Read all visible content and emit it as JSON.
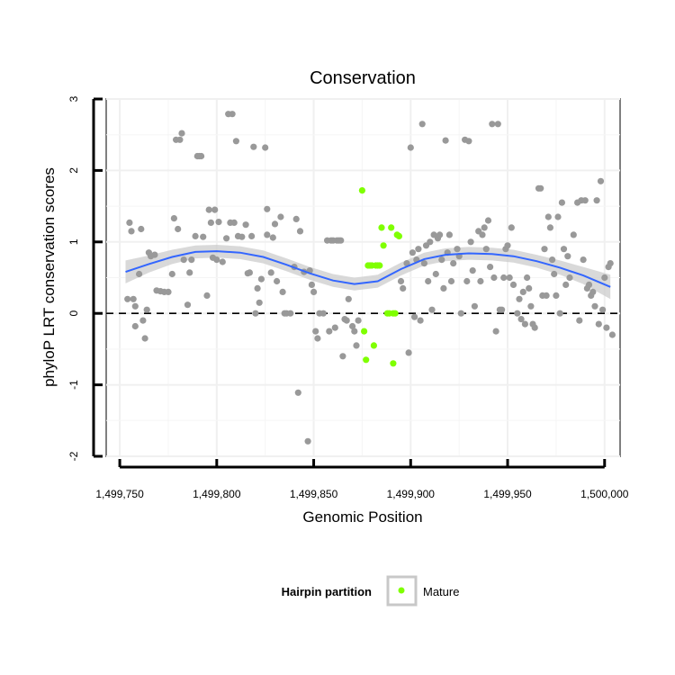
{
  "chart_data": {
    "type": "scatter",
    "title": "Conservation",
    "xlabel": "Genomic Position",
    "ylabel": "phyloP LRT conservation scores",
    "xlim": [
      1499743,
      1500008
    ],
    "ylim": [
      -2,
      3
    ],
    "x_ticks": [
      1499750,
      1499800,
      1499850,
      1499900,
      1499950,
      1500000
    ],
    "x_tick_labels": [
      "1,499,750",
      "1,499,800",
      "1,499,850",
      "1,499,900",
      "1,499,950",
      "1,500,000"
    ],
    "y_ticks": [
      -2,
      -1,
      0,
      1,
      2,
      3
    ],
    "y_tick_labels": [
      "-2",
      "-1",
      "0",
      "1",
      "2",
      "3"
    ],
    "grid": true,
    "reference_line": {
      "y": 0,
      "style": "dashed"
    },
    "colors": {
      "other": "#999999",
      "mature": "#7fff00",
      "smooth": "#3366ff",
      "band": "#cccccc"
    },
    "legend": {
      "title": "Hairpin partition",
      "entries": [
        "Mature"
      ],
      "position": "bottom"
    },
    "series": [
      {
        "group": "other",
        "points": [
          [
            1499754,
            0.2
          ],
          [
            1499755,
            1.27
          ],
          [
            1499756,
            1.15
          ],
          [
            1499757,
            0.2
          ],
          [
            1499758,
            0.1
          ],
          [
            1499758,
            -0.18
          ],
          [
            1499760,
            0.55
          ],
          [
            1499761,
            1.18
          ],
          [
            1499762,
            -0.1
          ],
          [
            1499763,
            -0.35
          ],
          [
            1499764,
            0.05
          ],
          [
            1499765,
            0.85
          ],
          [
            1499766,
            0.8
          ],
          [
            1499768,
            0.82
          ],
          [
            1499769,
            0.32
          ],
          [
            1499771,
            0.31
          ],
          [
            1499773,
            0.3
          ],
          [
            1499775,
            0.3
          ],
          [
            1499777,
            0.55
          ],
          [
            1499778,
            1.33
          ],
          [
            1499779,
            2.43
          ],
          [
            1499780,
            1.18
          ],
          [
            1499781,
            2.43
          ],
          [
            1499782,
            2.52
          ],
          [
            1499783,
            0.75
          ],
          [
            1499785,
            0.12
          ],
          [
            1499786,
            0.57
          ],
          [
            1499787,
            0.75
          ],
          [
            1499789,
            1.08
          ],
          [
            1499790,
            2.2
          ],
          [
            1499791,
            2.2
          ],
          [
            1499792,
            2.2
          ],
          [
            1499793,
            1.07
          ],
          [
            1499795,
            0.25
          ],
          [
            1499796,
            1.45
          ],
          [
            1499797,
            1.27
          ],
          [
            1499798,
            0.78
          ],
          [
            1499799,
            1.45
          ],
          [
            1499800,
            0.75
          ],
          [
            1499801,
            1.28
          ],
          [
            1499803,
            0.72
          ],
          [
            1499805,
            1.05
          ],
          [
            1499806,
            2.79
          ],
          [
            1499807,
            1.27
          ],
          [
            1499808,
            2.79
          ],
          [
            1499809,
            1.27
          ],
          [
            1499810,
            2.41
          ],
          [
            1499811,
            1.08
          ],
          [
            1499813,
            1.07
          ],
          [
            1499815,
            1.24
          ],
          [
            1499816,
            0.56
          ],
          [
            1499817,
            0.57
          ],
          [
            1499818,
            1.08
          ],
          [
            1499819,
            2.33
          ],
          [
            1499820,
            0.0
          ],
          [
            1499821,
            0.35
          ],
          [
            1499822,
            0.15
          ],
          [
            1499823,
            0.48
          ],
          [
            1499825,
            2.32
          ],
          [
            1499826,
            1.46
          ],
          [
            1499826,
            1.1
          ],
          [
            1499828,
            0.57
          ],
          [
            1499829,
            1.06
          ],
          [
            1499830,
            1.25
          ],
          [
            1499831,
            0.45
          ],
          [
            1499833,
            1.35
          ],
          [
            1499834,
            0.3
          ],
          [
            1499835,
            0.0
          ],
          [
            1499836,
            0.0
          ],
          [
            1499838,
            0.0
          ],
          [
            1499840,
            0.65
          ],
          [
            1499841,
            1.32
          ],
          [
            1499842,
            -1.11
          ],
          [
            1499843,
            1.15
          ],
          [
            1499845,
            0.58
          ],
          [
            1499847,
            -1.79
          ],
          [
            1499848,
            0.6
          ],
          [
            1499849,
            0.4
          ],
          [
            1499850,
            0.3
          ],
          [
            1499851,
            -0.25
          ],
          [
            1499852,
            -0.35
          ],
          [
            1499853,
            0.0
          ],
          [
            1499855,
            0.0
          ],
          [
            1499857,
            1.02
          ],
          [
            1499858,
            -0.25
          ],
          [
            1499859,
            1.02
          ],
          [
            1499860,
            1.02
          ],
          [
            1499861,
            -0.2
          ],
          [
            1499862,
            1.02
          ],
          [
            1499863,
            1.02
          ],
          [
            1499864,
            1.02
          ],
          [
            1499865,
            -0.6
          ],
          [
            1499866,
            -0.08
          ],
          [
            1499867,
            -0.1
          ],
          [
            1499868,
            0.2
          ],
          [
            1499870,
            -0.18
          ],
          [
            1499871,
            -0.25
          ],
          [
            1499872,
            -0.45
          ],
          [
            1499873,
            -0.1
          ],
          [
            1499895,
            0.45
          ],
          [
            1499896,
            0.35
          ],
          [
            1499898,
            0.7
          ],
          [
            1499899,
            -0.55
          ],
          [
            1499900,
            2.32
          ],
          [
            1499901,
            0.85
          ],
          [
            1499902,
            -0.05
          ],
          [
            1499903,
            0.75
          ],
          [
            1499904,
            0.9
          ],
          [
            1499905,
            -0.1
          ],
          [
            1499906,
            2.65
          ],
          [
            1499907,
            0.7
          ],
          [
            1499908,
            0.95
          ],
          [
            1499909,
            0.45
          ],
          [
            1499910,
            1.0
          ],
          [
            1499911,
            0.05
          ],
          [
            1499912,
            1.1
          ],
          [
            1499913,
            0.55
          ],
          [
            1499914,
            1.05
          ],
          [
            1499915,
            1.1
          ],
          [
            1499916,
            0.75
          ],
          [
            1499917,
            0.35
          ],
          [
            1499918,
            2.42
          ],
          [
            1499919,
            0.85
          ],
          [
            1499920,
            1.1
          ],
          [
            1499921,
            0.45
          ],
          [
            1499922,
            0.7
          ],
          [
            1499924,
            0.9
          ],
          [
            1499925,
            0.8
          ],
          [
            1499926,
            0.0
          ],
          [
            1499928,
            2.43
          ],
          [
            1499929,
            0.45
          ],
          [
            1499930,
            2.41
          ],
          [
            1499931,
            1.0
          ],
          [
            1499932,
            0.6
          ],
          [
            1499933,
            0.1
          ],
          [
            1499935,
            1.15
          ],
          [
            1499936,
            0.45
          ],
          [
            1499937,
            1.1
          ],
          [
            1499938,
            1.2
          ],
          [
            1499939,
            0.9
          ],
          [
            1499940,
            1.3
          ],
          [
            1499941,
            0.65
          ],
          [
            1499942,
            2.65
          ],
          [
            1499943,
            0.5
          ],
          [
            1499944,
            -0.25
          ],
          [
            1499945,
            2.65
          ],
          [
            1499946,
            0.05
          ],
          [
            1499947,
            0.05
          ],
          [
            1499948,
            0.5
          ],
          [
            1499949,
            0.9
          ],
          [
            1499950,
            0.95
          ],
          [
            1499951,
            0.5
          ],
          [
            1499952,
            1.2
          ],
          [
            1499953,
            0.4
          ],
          [
            1499955,
            0.0
          ],
          [
            1499956,
            0.2
          ],
          [
            1499957,
            -0.08
          ],
          [
            1499958,
            0.3
          ],
          [
            1499959,
            -0.15
          ],
          [
            1499960,
            0.5
          ],
          [
            1499961,
            0.35
          ],
          [
            1499962,
            0.1
          ],
          [
            1499963,
            -0.15
          ],
          [
            1499964,
            -0.2
          ],
          [
            1499966,
            1.75
          ],
          [
            1499967,
            1.75
          ],
          [
            1499968,
            0.25
          ],
          [
            1499969,
            0.9
          ],
          [
            1499970,
            0.25
          ],
          [
            1499971,
            1.35
          ],
          [
            1499972,
            1.2
          ],
          [
            1499973,
            0.75
          ],
          [
            1499974,
            0.55
          ],
          [
            1499975,
            0.25
          ],
          [
            1499976,
            1.35
          ],
          [
            1499977,
            0.0
          ],
          [
            1499978,
            1.55
          ],
          [
            1499979,
            0.9
          ],
          [
            1499980,
            0.4
          ],
          [
            1499981,
            0.8
          ],
          [
            1499982,
            0.5
          ],
          [
            1499984,
            1.1
          ],
          [
            1499986,
            1.55
          ],
          [
            1499987,
            -0.1
          ],
          [
            1499988,
            1.58
          ],
          [
            1499989,
            0.75
          ],
          [
            1499990,
            1.58
          ],
          [
            1499991,
            0.35
          ],
          [
            1499992,
            0.4
          ],
          [
            1499993,
            0.25
          ],
          [
            1499994,
            0.3
          ],
          [
            1499995,
            0.1
          ],
          [
            1499996,
            1.58
          ],
          [
            1499997,
            -0.15
          ],
          [
            1499998,
            1.85
          ],
          [
            1499999,
            0.05
          ],
          [
            1500000,
            0.5
          ],
          [
            1500001,
            -0.2
          ],
          [
            1500002,
            0.65
          ],
          [
            1500003,
            0.7
          ],
          [
            1500004,
            -0.3
          ]
        ]
      },
      {
        "group": "Mature",
        "points": [
          [
            1499875,
            1.72
          ],
          [
            1499876,
            -0.25
          ],
          [
            1499877,
            -0.65
          ],
          [
            1499878,
            0.67
          ],
          [
            1499879,
            0.67
          ],
          [
            1499880,
            0.67
          ],
          [
            1499881,
            -0.45
          ],
          [
            1499882,
            0.67
          ],
          [
            1499883,
            0.67
          ],
          [
            1499884,
            0.67
          ],
          [
            1499885,
            1.2
          ],
          [
            1499886,
            0.95
          ],
          [
            1499888,
            0.0
          ],
          [
            1499889,
            0.0
          ],
          [
            1499890,
            1.2
          ],
          [
            1499891,
            -0.7
          ],
          [
            1499891,
            0.0
          ],
          [
            1499892,
            0.0
          ],
          [
            1499893,
            1.1
          ],
          [
            1499894,
            1.08
          ]
        ]
      }
    ],
    "smooth": {
      "x": [
        1499753,
        1499765,
        1499777,
        1499789,
        1499800,
        1499812,
        1499824,
        1499836,
        1499848,
        1499860,
        1499871,
        1499883,
        1499895,
        1499907,
        1499918,
        1499930,
        1499942,
        1499953,
        1499965,
        1499977,
        1499989,
        1500003
      ],
      "y": [
        0.58,
        0.69,
        0.79,
        0.86,
        0.87,
        0.85,
        0.79,
        0.68,
        0.56,
        0.46,
        0.41,
        0.45,
        0.62,
        0.76,
        0.82,
        0.84,
        0.83,
        0.8,
        0.73,
        0.64,
        0.53,
        0.37
      ],
      "band_halfwidth": [
        0.16,
        0.12,
        0.1,
        0.09,
        0.09,
        0.09,
        0.09,
        0.09,
        0.09,
        0.09,
        0.09,
        0.09,
        0.09,
        0.09,
        0.09,
        0.09,
        0.09,
        0.09,
        0.09,
        0.1,
        0.12,
        0.17
      ]
    }
  }
}
